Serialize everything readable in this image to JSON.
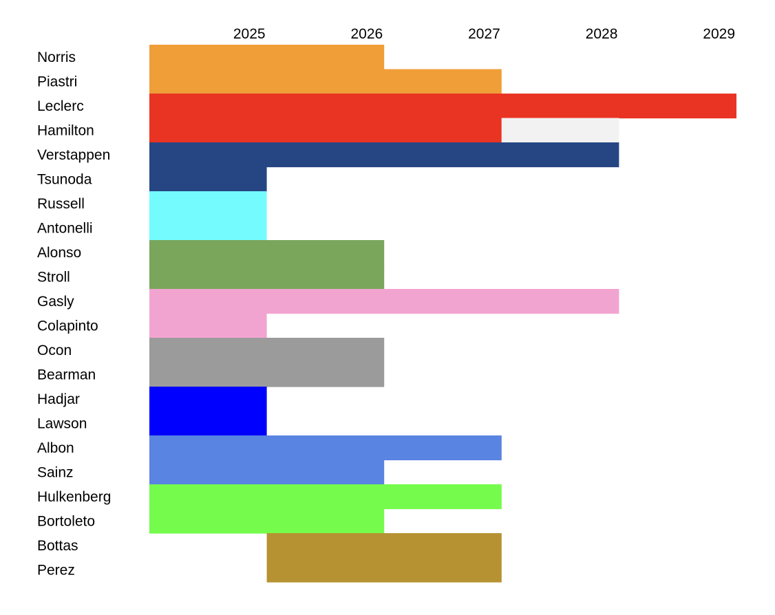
{
  "chart_data": {
    "type": "bar",
    "subtype": "horizontal-range-timeline",
    "title": "",
    "xlabel": "",
    "ylabel": "",
    "year_labels": [
      "2025",
      "2026",
      "2027",
      "2028",
      "2029"
    ],
    "x_range": [
      2024.2,
      2029.2
    ],
    "drivers": [
      {
        "name": "Norris",
        "start": 2024.2,
        "end": 2026.2,
        "color": "#F09E38"
      },
      {
        "name": "Piastri",
        "start": 2024.2,
        "end": 2027.2,
        "color": "#F09E38"
      },
      {
        "name": "Leclerc",
        "start": 2024.2,
        "end": 2029.2,
        "color": "#E93423"
      },
      {
        "name": "Hamilton",
        "start": 2024.2,
        "end": 2027.2,
        "color": "#E93423",
        "ext_start": 2027.2,
        "ext_end": 2028.2,
        "ext_color": "#F2F2F2"
      },
      {
        "name": "Verstappen",
        "start": 2024.2,
        "end": 2028.2,
        "color": "#264683"
      },
      {
        "name": "Tsunoda",
        "start": 2024.2,
        "end": 2025.2,
        "color": "#264683"
      },
      {
        "name": "Russell",
        "start": 2024.2,
        "end": 2025.2,
        "color": "#73FBFD"
      },
      {
        "name": "Antonelli",
        "start": 2024.2,
        "end": 2025.2,
        "color": "#73FBFD"
      },
      {
        "name": "Alonso",
        "start": 2024.2,
        "end": 2026.2,
        "color": "#7AA65B"
      },
      {
        "name": "Stroll",
        "start": 2024.2,
        "end": 2026.2,
        "color": "#7AA65B"
      },
      {
        "name": "Gasly",
        "start": 2024.2,
        "end": 2028.2,
        "color": "#F2A4D1"
      },
      {
        "name": "Colapinto",
        "start": 2024.2,
        "end": 2025.2,
        "color": "#F2A4D1"
      },
      {
        "name": "Ocon",
        "start": 2024.2,
        "end": 2026.2,
        "color": "#9B9B9B"
      },
      {
        "name": "Bearman",
        "start": 2024.2,
        "end": 2026.2,
        "color": "#9B9B9B"
      },
      {
        "name": "Hadjar",
        "start": 2024.2,
        "end": 2025.2,
        "color": "#0000FF"
      },
      {
        "name": "Lawson",
        "start": 2024.2,
        "end": 2025.2,
        "color": "#0000FF"
      },
      {
        "name": "Albon",
        "start": 2024.2,
        "end": 2027.2,
        "color": "#5984E1"
      },
      {
        "name": "Sainz",
        "start": 2024.2,
        "end": 2026.2,
        "color": "#5984E1"
      },
      {
        "name": "Hulkenberg",
        "start": 2024.2,
        "end": 2027.2,
        "color": "#75FB4C"
      },
      {
        "name": "Bortoleto",
        "start": 2024.2,
        "end": 2026.2,
        "color": "#75FB4C"
      },
      {
        "name": "Bottas",
        "start": 2025.2,
        "end": 2027.2,
        "color": "#B79232"
      },
      {
        "name": "Perez",
        "start": 2025.2,
        "end": 2027.2,
        "color": "#B79232"
      }
    ]
  }
}
